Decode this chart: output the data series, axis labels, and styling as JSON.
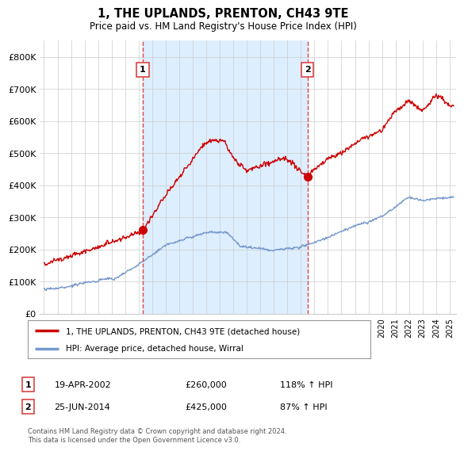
{
  "title": "1, THE UPLANDS, PRENTON, CH43 9TE",
  "subtitle": "Price paid vs. HM Land Registry's House Price Index (HPI)",
  "ylim": [
    0,
    850000
  ],
  "yticks": [
    0,
    100000,
    200000,
    300000,
    400000,
    500000,
    600000,
    700000,
    800000
  ],
  "ytick_labels": [
    "£0",
    "£100K",
    "£200K",
    "£300K",
    "£400K",
    "£500K",
    "£600K",
    "£700K",
    "£800K"
  ],
  "sale1_x": 2002.3,
  "sale1_price": 260000,
  "sale2_x": 2014.48,
  "sale2_price": 425000,
  "legend_line1": "1, THE UPLANDS, PRENTON, CH43 9TE (detached house)",
  "legend_line2": "HPI: Average price, detached house, Wirral",
  "table_row1": [
    "1",
    "19-APR-2002",
    "£260,000",
    "118% ↑ HPI"
  ],
  "table_row2": [
    "2",
    "25-JUN-2014",
    "£425,000",
    "87% ↑ HPI"
  ],
  "footer": "Contains HM Land Registry data © Crown copyright and database right 2024.\nThis data is licensed under the Open Government Licence v3.0.",
  "red_color": "#cc0000",
  "blue_color": "#7799cc",
  "dashed_color": "#dd4444",
  "shade_color": "#ddeeff",
  "grid_color": "#cccccc",
  "background": "#ffffff",
  "xmin": 1994.7,
  "xmax": 2025.5
}
